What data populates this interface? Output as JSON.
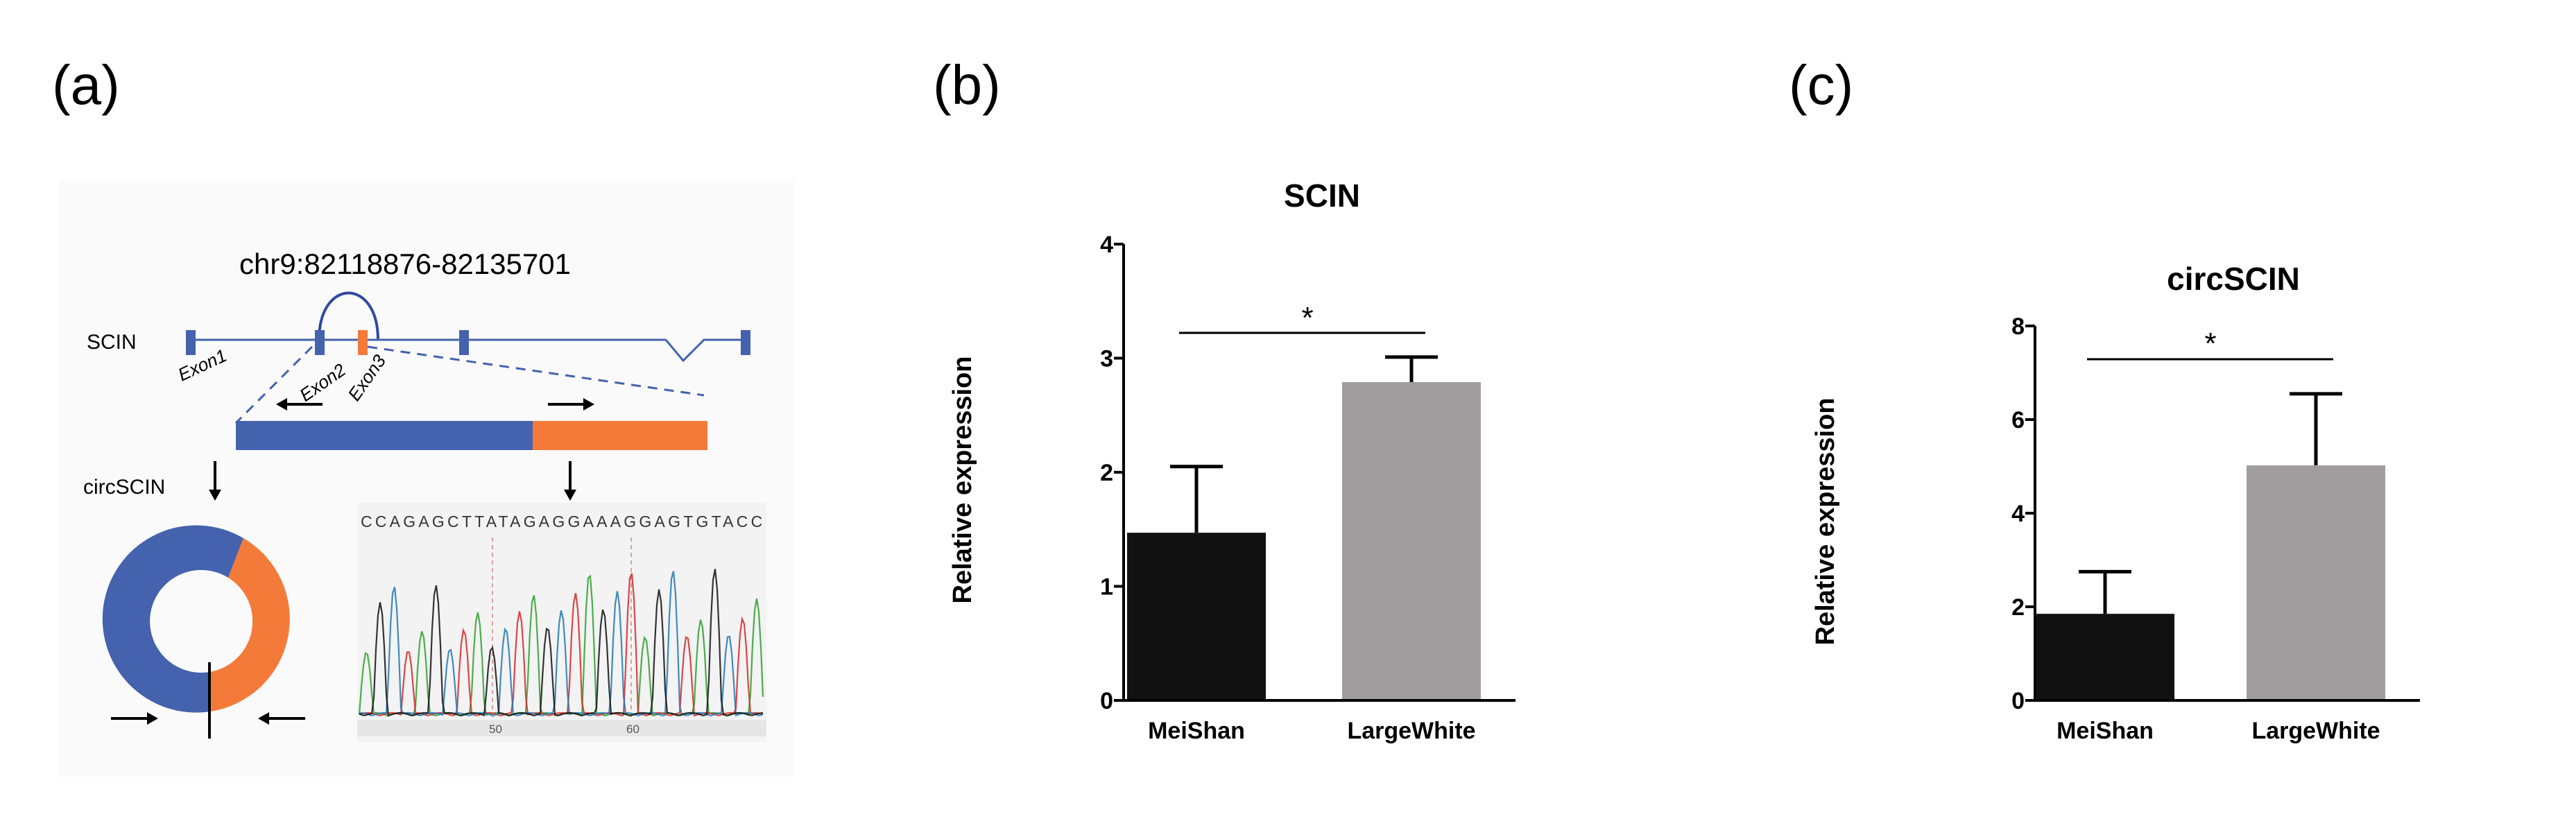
{
  "panels": {
    "a": {
      "label": "(a)",
      "locus": "chr9:82118876-82135701",
      "gene_label": "SCIN",
      "circ_label": "circSCIN",
      "exons": [
        "Exon1",
        "Exon2",
        "Exon3"
      ],
      "sequence": "CCAGAGCTTATAGAGGAAAGGAGTGTACC",
      "trace_positions": [
        "50",
        "60"
      ],
      "colors": {
        "exon_blue": "#4462ad",
        "exon_orange": "#f47a3a"
      }
    },
    "b": {
      "label": "(b)"
    },
    "c": {
      "label": "(c)"
    }
  },
  "chart_data": [
    {
      "type": "bar",
      "title": "SCIN",
      "xlabel": "",
      "ylabel": "Relative expression",
      "categories": [
        "MeiShan",
        "LargeWhite"
      ],
      "values": [
        1.47,
        2.79
      ],
      "errors": [
        0.58,
        0.22
      ],
      "colors": [
        "#111111",
        "#a19c9d"
      ],
      "ylim": [
        0,
        4
      ],
      "yticks": [
        "0",
        "1",
        "2",
        "3",
        "4"
      ],
      "significance": "*"
    },
    {
      "type": "bar",
      "title": "circSCIN",
      "xlabel": "",
      "ylabel": "Relative expression",
      "categories": [
        "MeiShan",
        "LargeWhite"
      ],
      "values": [
        1.85,
        5.02
      ],
      "errors": [
        0.9,
        1.53
      ],
      "colors": [
        "#111111",
        "#a19c9d"
      ],
      "ylim": [
        0,
        8
      ],
      "yticks": [
        "0",
        "2",
        "4",
        "6",
        "8"
      ],
      "significance": "*"
    }
  ]
}
